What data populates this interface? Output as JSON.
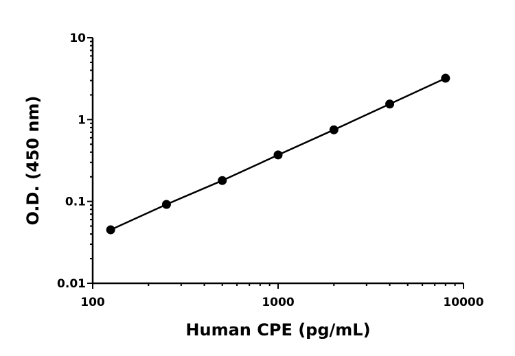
{
  "chart_data": {
    "type": "scatter",
    "title": "",
    "xlabel": "Human CPE (pg/mL)",
    "ylabel": "O.D. (450 nm)",
    "x_scale": "log",
    "y_scale": "log",
    "xlim": [
      100,
      10000
    ],
    "ylim": [
      0.01,
      10
    ],
    "x_ticks": [
      100,
      1000,
      10000
    ],
    "x_tick_labels": [
      "100",
      "1000",
      "10000"
    ],
    "y_ticks": [
      0.01,
      0.1,
      1,
      10
    ],
    "y_tick_labels": [
      "0.01",
      "0.1",
      "1",
      "10"
    ],
    "grid": false,
    "legend": "none",
    "series": [
      {
        "x": [
          125,
          250,
          500,
          1000,
          2000,
          4000,
          8000
        ],
        "y": [
          0.045,
          0.092,
          0.18,
          0.37,
          0.75,
          1.55,
          3.2
        ],
        "line": true,
        "marker": "circle",
        "color": "#000000"
      }
    ]
  }
}
